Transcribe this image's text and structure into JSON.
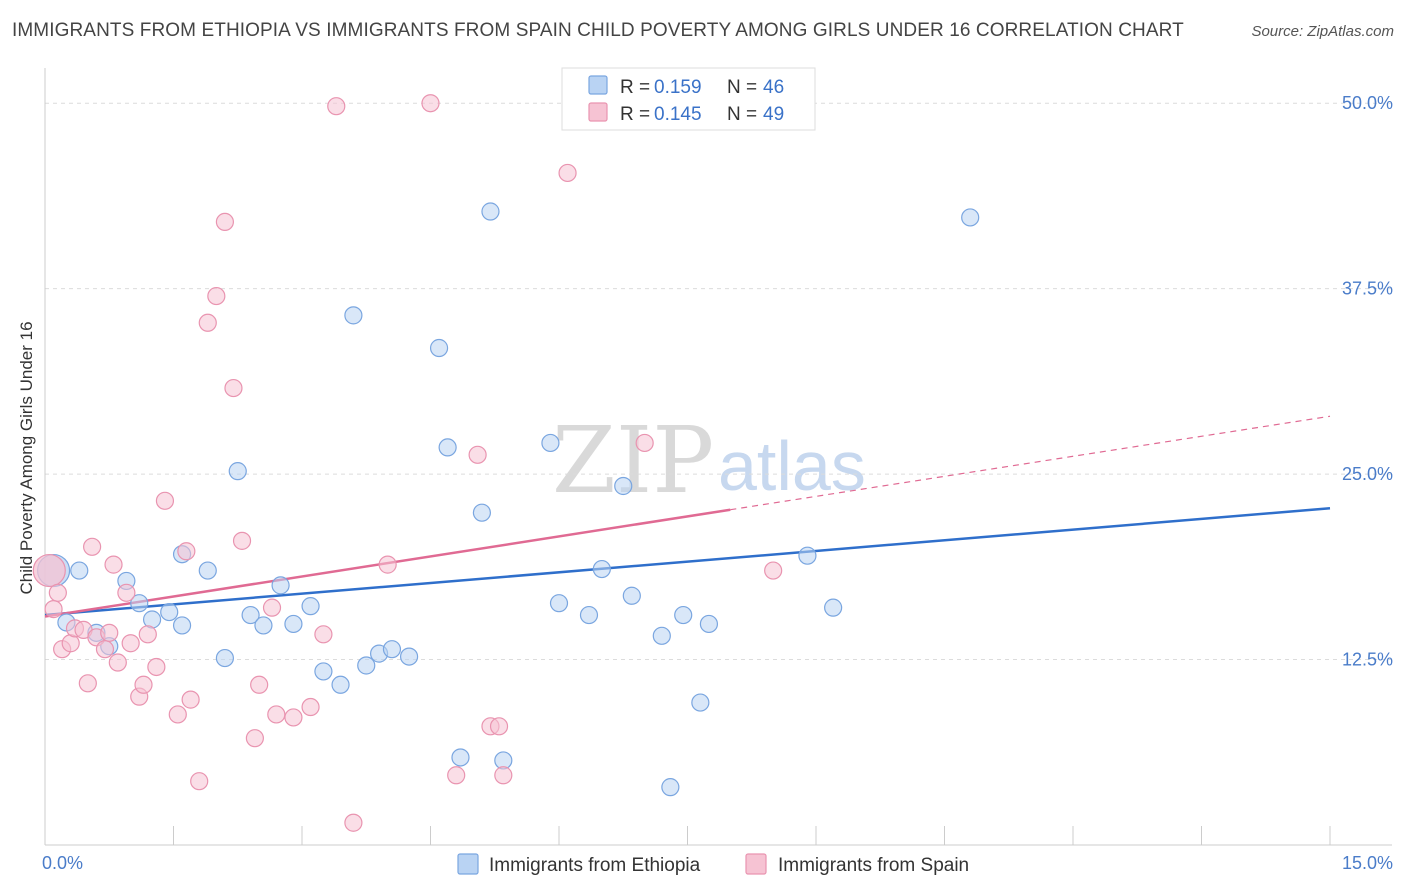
{
  "header": {
    "title": "IMMIGRANTS FROM ETHIOPIA VS IMMIGRANTS FROM SPAIN CHILD POVERTY AMONG GIRLS UNDER 16 CORRELATION CHART",
    "source": "Source: ZipAtlas.com"
  },
  "legend_top": {
    "r_label": "R =",
    "n_label": "N =",
    "ethiopia": {
      "r": "0.159",
      "n": "46"
    },
    "spain": {
      "r": "0.145",
      "n": "49"
    }
  },
  "watermark": {
    "zip": "ZIP",
    "atlas": "atlas"
  },
  "colors": {
    "ethiopia_fill": "#b9d3f3",
    "ethiopia_stroke": "#7aa6e0",
    "ethiopia_line": "#2f6fcb",
    "spain_fill": "#f6c3d3",
    "spain_stroke": "#e994b0",
    "spain_line": "#e06a93",
    "tick_text": "#4a7cc9"
  },
  "chart_data": {
    "type": "scatter",
    "ylabel": "Child Poverty Among Girls Under 16",
    "xlim": [
      0,
      15
    ],
    "ylim": [
      0,
      50
    ],
    "x_ticks": [
      0,
      15
    ],
    "x_tick_labels": [
      "0.0%",
      "15.0%"
    ],
    "y_ticks": [
      12.5,
      25,
      37.5,
      50
    ],
    "y_tick_labels": [
      "12.5%",
      "25.0%",
      "37.5%",
      "50.0%"
    ],
    "series": [
      {
        "name": "Immigrants from Ethiopia",
        "points": [
          [
            0.1,
            18.5
          ],
          [
            0.25,
            15.0
          ],
          [
            0.4,
            18.5
          ],
          [
            0.6,
            14.3
          ],
          [
            0.75,
            13.4
          ],
          [
            0.95,
            17.8
          ],
          [
            1.1,
            16.3
          ],
          [
            1.25,
            15.2
          ],
          [
            1.45,
            15.7
          ],
          [
            1.6,
            14.8
          ],
          [
            1.6,
            19.6
          ],
          [
            1.9,
            18.5
          ],
          [
            2.1,
            12.6
          ],
          [
            2.25,
            25.2
          ],
          [
            2.4,
            15.5
          ],
          [
            2.55,
            14.8
          ],
          [
            2.75,
            17.5
          ],
          [
            2.9,
            14.9
          ],
          [
            3.1,
            16.1
          ],
          [
            3.25,
            11.7
          ],
          [
            3.45,
            10.8
          ],
          [
            3.6,
            35.7
          ],
          [
            3.75,
            12.1
          ],
          [
            3.9,
            12.9
          ],
          [
            4.05,
            13.2
          ],
          [
            4.25,
            12.7
          ],
          [
            4.6,
            33.5
          ],
          [
            4.7,
            26.8
          ],
          [
            4.85,
            5.9
          ],
          [
            5.1,
            22.4
          ],
          [
            5.2,
            42.7
          ],
          [
            5.35,
            5.7
          ],
          [
            5.9,
            27.1
          ],
          [
            6.0,
            16.3
          ],
          [
            6.35,
            15.5
          ],
          [
            6.5,
            18.6
          ],
          [
            6.75,
            24.2
          ],
          [
            6.85,
            16.8
          ],
          [
            7.2,
            14.1
          ],
          [
            7.3,
            3.9
          ],
          [
            7.45,
            15.5
          ],
          [
            7.65,
            9.6
          ],
          [
            7.75,
            14.9
          ],
          [
            8.9,
            19.5
          ],
          [
            9.2,
            16.0
          ],
          [
            10.8,
            42.3
          ]
        ]
      },
      {
        "name": "Immigrants from Spain",
        "points": [
          [
            0.05,
            18.5
          ],
          [
            0.1,
            15.9
          ],
          [
            0.15,
            17.0
          ],
          [
            0.2,
            13.2
          ],
          [
            0.3,
            13.6
          ],
          [
            0.35,
            14.6
          ],
          [
            0.45,
            14.5
          ],
          [
            0.5,
            10.9
          ],
          [
            0.55,
            20.1
          ],
          [
            0.6,
            14.0
          ],
          [
            0.7,
            13.2
          ],
          [
            0.75,
            14.3
          ],
          [
            0.8,
            18.9
          ],
          [
            0.85,
            12.3
          ],
          [
            0.95,
            17.0
          ],
          [
            1.0,
            13.6
          ],
          [
            1.1,
            10.0
          ],
          [
            1.15,
            10.8
          ],
          [
            1.2,
            14.2
          ],
          [
            1.3,
            12.0
          ],
          [
            1.4,
            23.2
          ],
          [
            1.55,
            8.8
          ],
          [
            1.65,
            19.8
          ],
          [
            1.7,
            9.8
          ],
          [
            1.8,
            4.3
          ],
          [
            1.9,
            35.2
          ],
          [
            2.0,
            37.0
          ],
          [
            2.1,
            42.0
          ],
          [
            2.2,
            30.8
          ],
          [
            2.3,
            20.5
          ],
          [
            2.45,
            7.2
          ],
          [
            2.5,
            10.8
          ],
          [
            2.65,
            16.0
          ],
          [
            2.7,
            8.8
          ],
          [
            2.9,
            8.6
          ],
          [
            3.1,
            9.3
          ],
          [
            3.25,
            14.2
          ],
          [
            3.4,
            49.8
          ],
          [
            3.6,
            1.5
          ],
          [
            4.0,
            18.9
          ],
          [
            4.5,
            50.0
          ],
          [
            4.8,
            4.7
          ],
          [
            5.05,
            26.3
          ],
          [
            5.2,
            8.0
          ],
          [
            5.3,
            8.0
          ],
          [
            5.35,
            4.7
          ],
          [
            6.1,
            45.3
          ],
          [
            7.0,
            27.1
          ],
          [
            8.5,
            18.5
          ]
        ]
      }
    ],
    "trendlines": [
      {
        "series": "Immigrants from Ethiopia",
        "x": [
          0,
          15
        ],
        "y": [
          15.5,
          22.7
        ]
      },
      {
        "series": "Immigrants from Spain",
        "x": [
          0,
          8.0
        ],
        "y": [
          15.4,
          22.6
        ]
      },
      {
        "series": "Immigrants from Spain (projected)",
        "x": [
          8.0,
          15
        ],
        "y": [
          22.6,
          28.9
        ]
      }
    ],
    "grid": true,
    "legend": "top-center"
  }
}
